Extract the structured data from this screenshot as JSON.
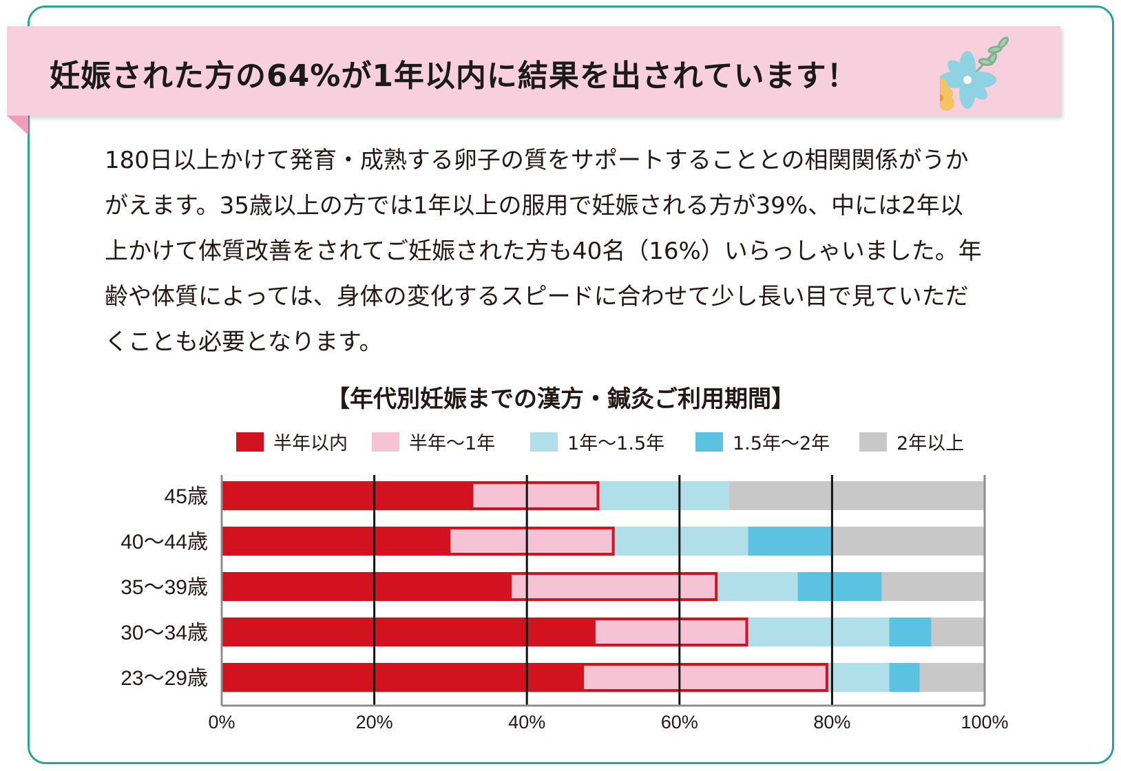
{
  "header": {
    "title": "妊娠された方の64%が1年以内に結果を出されています！"
  },
  "body": {
    "lines": [
      "180日以上かけて発育・成熟する卵子の質をサポートすることとの相関関係がうか",
      "がえます。35歳以上の方では1年以上の服用で妊娠される方が39%、中には2年以",
      "上かけて体質改善をされてご妊娠された方も40名（16%）いらっしゃいました。年",
      "齢や体質によっては、身体の変化するスピードに合わせて少し長い目で見ていただ",
      "くことも必要となります。"
    ]
  },
  "colors": {
    "frame": "#2aa58c",
    "banner": "#f8d0dd",
    "series": [
      "#d2121e",
      "#f6c3d5",
      "#b1dfe9",
      "#5bc3e1",
      "#c8c8c8"
    ],
    "highlight_border": "#d2121e"
  },
  "chart_data": {
    "type": "bar",
    "orientation": "horizontal",
    "stacked": true,
    "title": "【年代別妊娠までの漢方・鍼灸ご利用期間】",
    "categories": [
      "45歳",
      "40〜44歳",
      "35〜39歳",
      "30〜34歳",
      "23〜29歳"
    ],
    "series": [
      {
        "name": "半年以内",
        "values": [
          33,
          30,
          38,
          49,
          47.5
        ]
      },
      {
        "name": "半年〜1年",
        "values": [
          16.5,
          21.5,
          27,
          20,
          32
        ]
      },
      {
        "name": "1年〜1.5年",
        "values": [
          17,
          17.5,
          10.5,
          18.5,
          8
        ]
      },
      {
        "name": "1.5年〜2年",
        "values": [
          0,
          11,
          11,
          5.5,
          4
        ]
      },
      {
        "name": "2年以上",
        "values": [
          33.5,
          20,
          13.5,
          7,
          8.5
        ]
      }
    ],
    "xticks": [
      "0%",
      "20%",
      "40%",
      "60%",
      "80%",
      "100%"
    ],
    "xlim": [
      0,
      100
    ],
    "xlabel": "",
    "ylabel": "",
    "grid": true,
    "legend": "top",
    "highlight": "first two segments (半年以内 + 半年〜1年) outlined in red"
  }
}
